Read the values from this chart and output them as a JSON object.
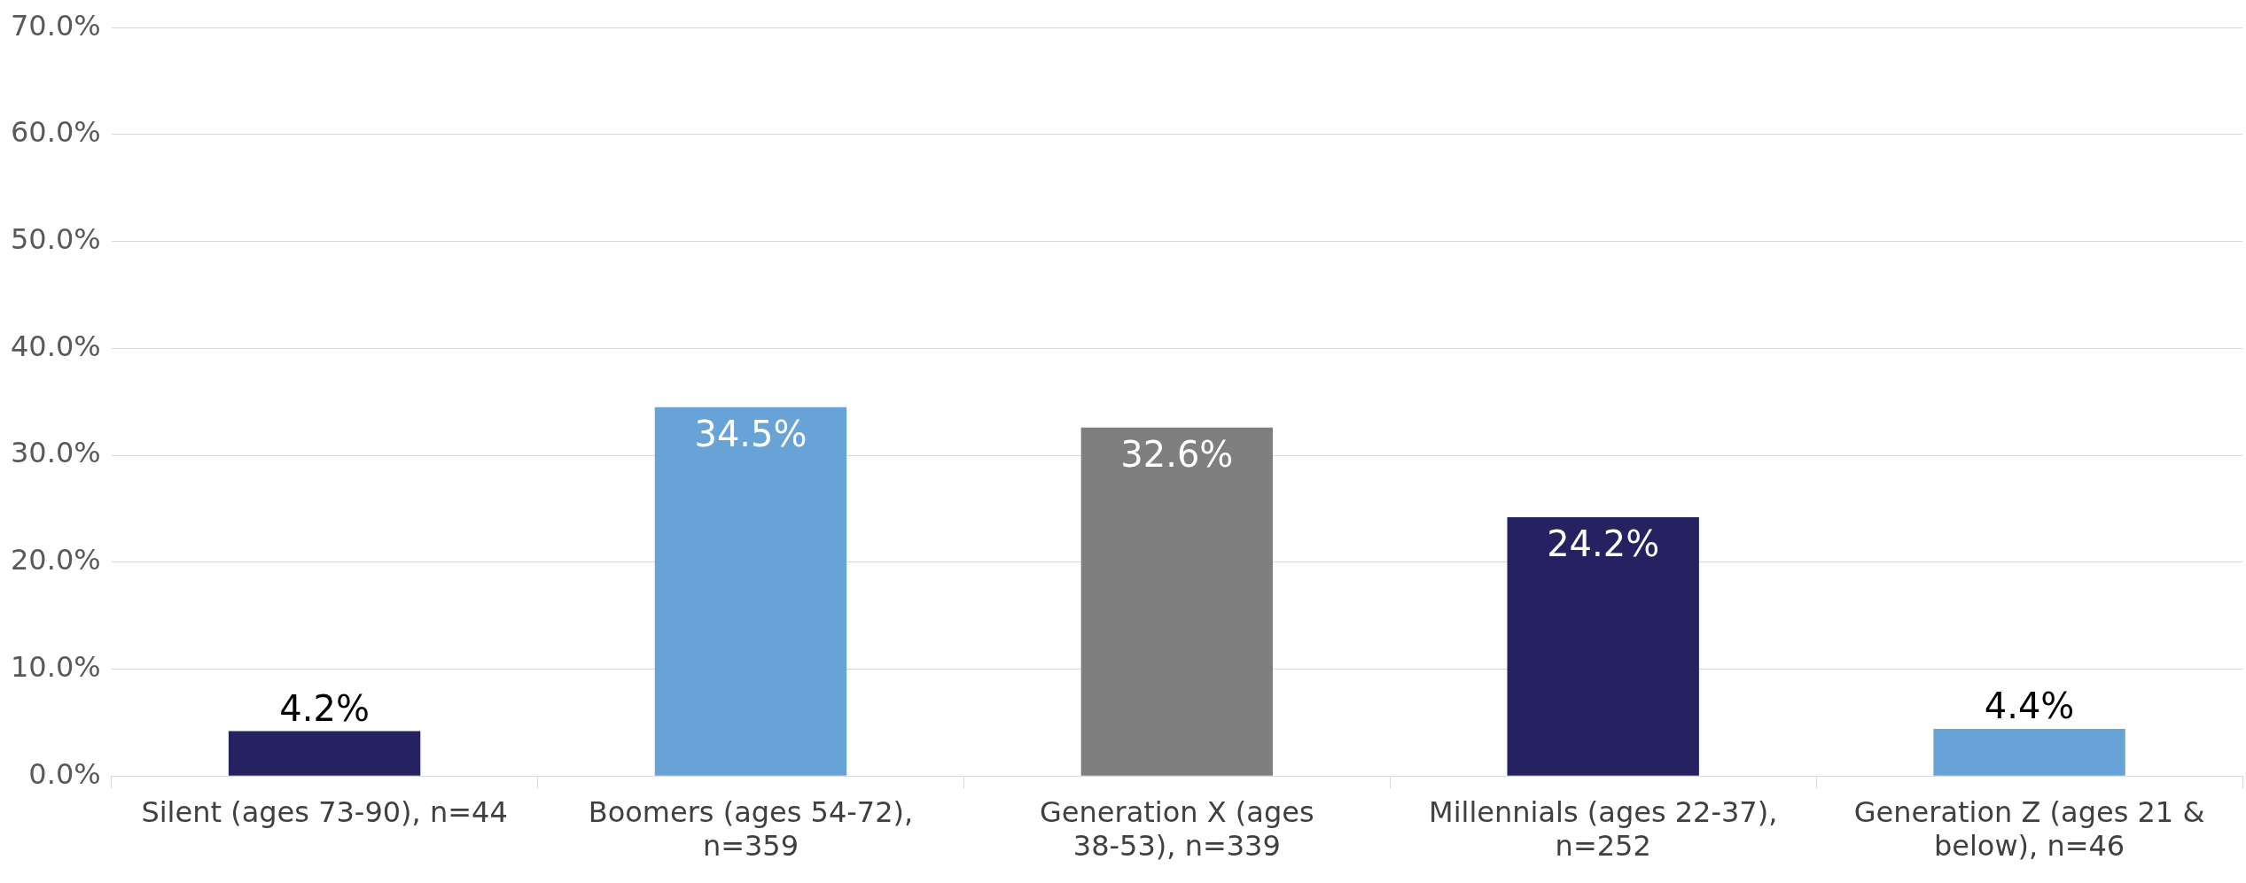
{
  "chart_data": {
    "type": "bar",
    "categories": [
      "Silent (ages 73-90), n=44",
      "Boomers (ages 54-72), n=359",
      "Generation X (ages 38-53), n=339",
      "Millennials (ages 22-37), n=252",
      "Generation Z (ages 21 & below), n=46"
    ],
    "values": [
      4.2,
      34.5,
      32.6,
      24.2,
      4.4
    ],
    "colors": [
      "#262262",
      "#67a3d6",
      "#7f7f7f",
      "#262262",
      "#67a3d6"
    ],
    "value_labels": [
      "4.2%",
      "34.5%",
      "32.6%",
      "24.2%",
      "4.4%"
    ],
    "ylim": [
      0,
      70
    ],
    "yticks": [
      {
        "value": 0,
        "label": "0.0%"
      },
      {
        "value": 10,
        "label": "10.0%"
      },
      {
        "value": 20,
        "label": "20.0%"
      },
      {
        "value": 30,
        "label": "30.0%"
      },
      {
        "value": 40,
        "label": "40.0%"
      },
      {
        "value": 50,
        "label": "50.0%"
      },
      {
        "value": 60,
        "label": "60.0%"
      },
      {
        "value": 70,
        "label": "70.0%"
      }
    ],
    "grid": "y",
    "legend": false
  }
}
